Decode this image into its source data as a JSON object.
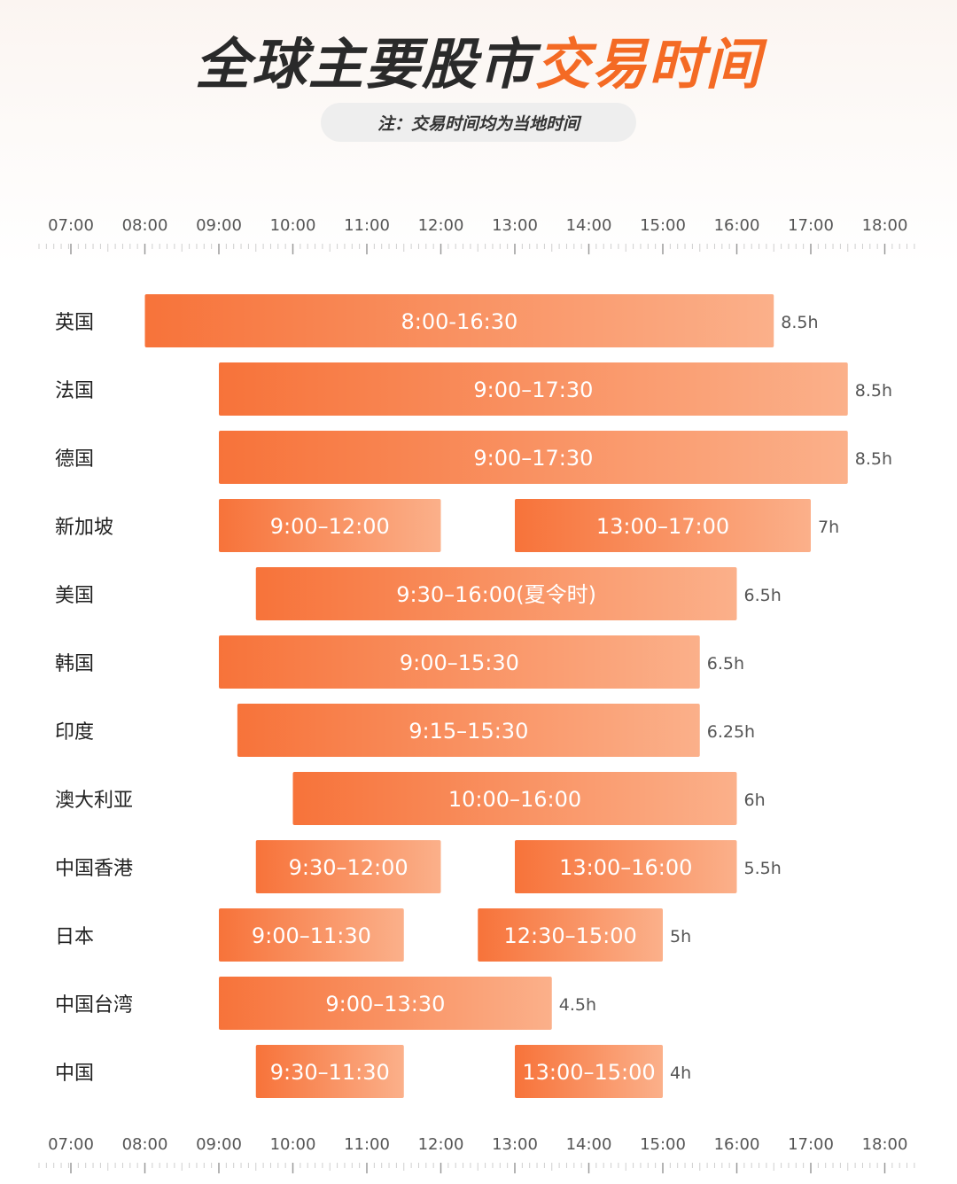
{
  "header": {
    "title_part1": "全球主要股市",
    "title_part2": "交易时间",
    "note": "注：交易时间均为当地时间"
  },
  "colors": {
    "bar_start": "#f7733a",
    "bar_end": "#fbb08a",
    "title_dark": "#2a2a2a",
    "accent": "#f46a24"
  },
  "chart_data": {
    "type": "bar",
    "orientation": "horizontal-range",
    "title": "全球主要股市交易时间",
    "x_axis": {
      "ticks": [
        "07:00",
        "08:00",
        "09:00",
        "10:00",
        "11:00",
        "12:00",
        "13:00",
        "14:00",
        "15:00",
        "16:00",
        "17:00",
        "18:00"
      ],
      "range": [
        7,
        18
      ]
    },
    "markets": [
      {
        "name": "英国",
        "total": "8.5h",
        "sessions": [
          {
            "start": 8.0,
            "end": 16.5,
            "label": "8:00-16:30"
          }
        ]
      },
      {
        "name": "法国",
        "total": "8.5h",
        "sessions": [
          {
            "start": 9.0,
            "end": 17.5,
            "label": "9:00–17:30"
          }
        ]
      },
      {
        "name": "德国",
        "total": "8.5h",
        "sessions": [
          {
            "start": 9.0,
            "end": 17.5,
            "label": "9:00–17:30"
          }
        ]
      },
      {
        "name": "新加坡",
        "total": "7h",
        "sessions": [
          {
            "start": 9.0,
            "end": 12.0,
            "label": "9:00–12:00"
          },
          {
            "start": 13.0,
            "end": 17.0,
            "label": "13:00–17:00"
          }
        ]
      },
      {
        "name": "美国",
        "total": "6.5h",
        "sessions": [
          {
            "start": 9.5,
            "end": 16.0,
            "label": "9:30–16:00(夏令时)"
          }
        ]
      },
      {
        "name": "韩国",
        "total": "6.5h",
        "sessions": [
          {
            "start": 9.0,
            "end": 15.5,
            "label": "9:00–15:30"
          }
        ]
      },
      {
        "name": "印度",
        "total": "6.25h",
        "sessions": [
          {
            "start": 9.25,
            "end": 15.5,
            "label": "9:15–15:30"
          }
        ]
      },
      {
        "name": "澳大利亚",
        "total": "6h",
        "sessions": [
          {
            "start": 10.0,
            "end": 16.0,
            "label": "10:00–16:00"
          }
        ]
      },
      {
        "name": "中国香港",
        "total": "5.5h",
        "sessions": [
          {
            "start": 9.5,
            "end": 12.0,
            "label": "9:30–12:00"
          },
          {
            "start": 13.0,
            "end": 16.0,
            "label": "13:00–16:00"
          }
        ]
      },
      {
        "name": "日本",
        "total": "5h",
        "sessions": [
          {
            "start": 9.0,
            "end": 11.5,
            "label": "9:00–11:30"
          },
          {
            "start": 12.5,
            "end": 15.0,
            "label": "12:30–15:00"
          }
        ]
      },
      {
        "name": "中国台湾",
        "total": "4.5h",
        "sessions": [
          {
            "start": 9.0,
            "end": 13.5,
            "label": "9:00–13:30"
          }
        ]
      },
      {
        "name": "中国",
        "total": "4h",
        "sessions": [
          {
            "start": 9.5,
            "end": 11.5,
            "label": "9:30–11:30"
          },
          {
            "start": 13.0,
            "end": 15.0,
            "label": "13:00–15:00"
          }
        ]
      }
    ]
  }
}
